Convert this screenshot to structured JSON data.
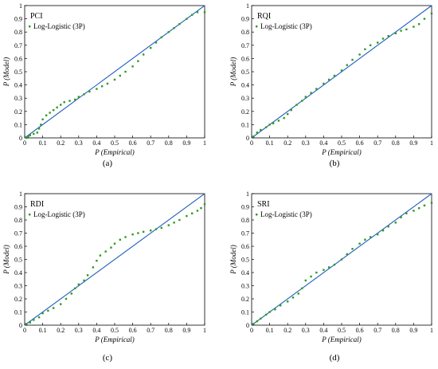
{
  "chart_data": [
    {
      "type": "scatter",
      "title": "PCI",
      "caption": "(a)",
      "xlabel": "P (Empirical)",
      "ylabel": "P (Model)",
      "xlim": [
        0,
        1
      ],
      "ylim": [
        0,
        1
      ],
      "xticks": [
        "0",
        "0.1",
        "0.2",
        "0.3",
        "0.4",
        "0.5",
        "0.6",
        "0.7",
        "0.8",
        "0.9",
        "1"
      ],
      "yticks": [
        "0",
        "0.1",
        "0.2",
        "0.3",
        "0.4",
        "0.5",
        "0.6",
        "0.7",
        "0.8",
        "0.9",
        "1"
      ],
      "grid": false,
      "legend_position": "top-left",
      "reference_line": {
        "x": [
          0,
          1
        ],
        "y": [
          0,
          1
        ],
        "color": "#1f5fbf"
      },
      "series": [
        {
          "name": "Log-Logistic (3P)",
          "color": "#2e9a1e",
          "x": [
            0.01,
            0.02,
            0.03,
            0.05,
            0.07,
            0.08,
            0.09,
            0.1,
            0.12,
            0.14,
            0.16,
            0.18,
            0.2,
            0.22,
            0.25,
            0.28,
            0.3,
            0.33,
            0.36,
            0.4,
            0.43,
            0.46,
            0.5,
            0.53,
            0.56,
            0.6,
            0.63,
            0.66,
            0.7,
            0.73,
            0.76,
            0.8,
            0.83,
            0.86,
            0.9,
            0.93,
            0.96,
            1.0
          ],
          "y": [
            0.0,
            0.01,
            0.02,
            0.03,
            0.04,
            0.07,
            0.1,
            0.14,
            0.17,
            0.19,
            0.21,
            0.23,
            0.25,
            0.27,
            0.28,
            0.29,
            0.31,
            0.33,
            0.35,
            0.37,
            0.39,
            0.41,
            0.44,
            0.47,
            0.5,
            0.54,
            0.58,
            0.63,
            0.68,
            0.72,
            0.76,
            0.8,
            0.83,
            0.86,
            0.9,
            0.93,
            0.95,
            0.95
          ]
        }
      ]
    },
    {
      "type": "scatter",
      "title": "RQI",
      "caption": "(b)",
      "xlabel": "P (Empirical)",
      "ylabel": "P (Model)",
      "xlim": [
        0,
        1
      ],
      "ylim": [
        0,
        1
      ],
      "xticks": [
        "0",
        "0.1",
        "0.2",
        "0.3",
        "0.4",
        "0.5",
        "0.6",
        "0.7",
        "0.8",
        "0.9",
        "1"
      ],
      "yticks": [
        "0",
        "0.1",
        "0.2",
        "0.3",
        "0.4",
        "0.5",
        "0.6",
        "0.7",
        "0.8",
        "0.9",
        "1"
      ],
      "grid": false,
      "legend_position": "top-left",
      "reference_line": {
        "x": [
          0,
          1
        ],
        "y": [
          0,
          1
        ],
        "color": "#1f5fbf"
      },
      "series": [
        {
          "name": "Log-Logistic (3P)",
          "color": "#2e9a1e",
          "x": [
            0.01,
            0.03,
            0.05,
            0.08,
            0.1,
            0.12,
            0.15,
            0.18,
            0.2,
            0.22,
            0.25,
            0.28,
            0.3,
            0.33,
            0.36,
            0.4,
            0.43,
            0.46,
            0.5,
            0.53,
            0.56,
            0.6,
            0.63,
            0.66,
            0.7,
            0.73,
            0.76,
            0.8,
            0.83,
            0.86,
            0.9,
            0.93,
            0.96,
            1.0
          ],
          "y": [
            0.01,
            0.04,
            0.06,
            0.08,
            0.1,
            0.11,
            0.13,
            0.15,
            0.18,
            0.21,
            0.25,
            0.28,
            0.31,
            0.34,
            0.37,
            0.41,
            0.44,
            0.47,
            0.51,
            0.55,
            0.59,
            0.63,
            0.67,
            0.7,
            0.72,
            0.75,
            0.77,
            0.79,
            0.81,
            0.82,
            0.84,
            0.86,
            0.9,
            0.94
          ]
        }
      ]
    },
    {
      "type": "scatter",
      "title": "RDI",
      "caption": "(c)",
      "xlabel": "P (Empirical)",
      "ylabel": "P (Model)",
      "xlim": [
        0,
        1
      ],
      "ylim": [
        0,
        1
      ],
      "xticks": [
        "0",
        "0.1",
        "0.2",
        "0.3",
        "0.4",
        "0.5",
        "0.6",
        "0.7",
        "0.8",
        "0.9",
        "1"
      ],
      "yticks": [
        "0",
        "0.1",
        "0.2",
        "0.3",
        "0.4",
        "0.5",
        "0.6",
        "0.7",
        "0.8",
        "0.9",
        "1"
      ],
      "grid": false,
      "legend_position": "top-left",
      "reference_line": {
        "x": [
          0,
          1
        ],
        "y": [
          0,
          1
        ],
        "color": "#1f5fbf"
      },
      "series": [
        {
          "name": "Log-Logistic (3P)",
          "color": "#2e9a1e",
          "x": [
            0.01,
            0.03,
            0.05,
            0.08,
            0.1,
            0.13,
            0.16,
            0.2,
            0.23,
            0.26,
            0.28,
            0.3,
            0.33,
            0.35,
            0.38,
            0.4,
            0.42,
            0.45,
            0.48,
            0.5,
            0.53,
            0.56,
            0.6,
            0.63,
            0.66,
            0.7,
            0.73,
            0.76,
            0.8,
            0.83,
            0.86,
            0.9,
            0.93,
            0.96,
            0.98,
            1.0
          ],
          "y": [
            0.01,
            0.02,
            0.04,
            0.06,
            0.09,
            0.11,
            0.13,
            0.16,
            0.2,
            0.24,
            0.28,
            0.31,
            0.34,
            0.38,
            0.44,
            0.49,
            0.53,
            0.56,
            0.59,
            0.62,
            0.65,
            0.67,
            0.69,
            0.7,
            0.71,
            0.72,
            0.73,
            0.74,
            0.76,
            0.78,
            0.8,
            0.83,
            0.85,
            0.87,
            0.89,
            0.92
          ]
        }
      ]
    },
    {
      "type": "scatter",
      "title": "SRI",
      "caption": "(d)",
      "xlabel": "P (Empirical)",
      "ylabel": "P (Model)",
      "xlim": [
        0,
        1
      ],
      "ylim": [
        0,
        1
      ],
      "xticks": [
        "0",
        "0.1",
        "0.2",
        "0.3",
        "0.4",
        "0.5",
        "0.6",
        "0.7",
        "0.8",
        "0.9",
        "1"
      ],
      "yticks": [
        "0",
        "0.1",
        "0.2",
        "0.3",
        "0.4",
        "0.5",
        "0.6",
        "0.7",
        "0.8",
        "0.9",
        "1"
      ],
      "grid": false,
      "legend_position": "top-left",
      "reference_line": {
        "x": [
          0,
          1
        ],
        "y": [
          0,
          1
        ],
        "color": "#1f5fbf"
      },
      "series": [
        {
          "name": "Log-Logistic (3P)",
          "color": "#2e9a1e",
          "x": [
            0.01,
            0.03,
            0.05,
            0.08,
            0.1,
            0.13,
            0.16,
            0.2,
            0.23,
            0.26,
            0.28,
            0.3,
            0.33,
            0.36,
            0.4,
            0.43,
            0.46,
            0.5,
            0.53,
            0.56,
            0.6,
            0.63,
            0.66,
            0.7,
            0.73,
            0.76,
            0.8,
            0.83,
            0.86,
            0.9,
            0.93,
            0.96,
            1.0
          ],
          "y": [
            0.01,
            0.03,
            0.05,
            0.08,
            0.1,
            0.12,
            0.15,
            0.18,
            0.21,
            0.24,
            0.28,
            0.34,
            0.37,
            0.4,
            0.42,
            0.44,
            0.46,
            0.5,
            0.54,
            0.58,
            0.62,
            0.65,
            0.67,
            0.69,
            0.72,
            0.75,
            0.78,
            0.82,
            0.85,
            0.87,
            0.89,
            0.91,
            0.93
          ]
        }
      ]
    }
  ]
}
